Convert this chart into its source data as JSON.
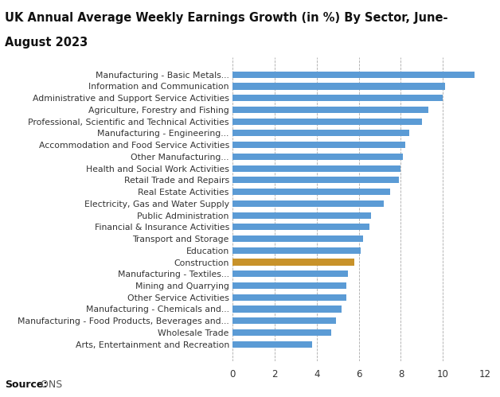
{
  "title_line1": "UK Annual Average Weekly Earnings Growth (in %) By Sector, June-",
  "title_line2": "August 2023",
  "categories": [
    "Manufacturing - Basic Metals...",
    "Information and Communication",
    "Administrative and Support Service Activities",
    "Agriculture, Forestry and Fishing",
    "Professional, Scientific and Technical Activities",
    "Manufacturing - Engineering...",
    "Accommodation and Food Service Activities",
    "Other Manufacturing...",
    "Health and Social Work Activities",
    "Retail Trade and Repairs",
    "Real Estate Activities",
    "Electricity, Gas and Water Supply",
    "Public Administration",
    "Financial & Insurance Activities",
    "Transport and Storage",
    "Education",
    "Construction",
    "Manufacturing - Textiles...",
    "Mining and Quarrying",
    "Other Service Activities",
    "Manufacturing - Chemicals and...",
    "Manufacturing - Food Products, Beverages and...",
    "Wholesale Trade",
    "Arts, Entertainment and Recreation"
  ],
  "values": [
    11.5,
    10.1,
    10.0,
    9.3,
    9.0,
    8.4,
    8.2,
    8.1,
    8.0,
    7.9,
    7.5,
    7.2,
    6.6,
    6.5,
    6.2,
    6.1,
    5.8,
    5.5,
    5.4,
    5.4,
    5.2,
    4.9,
    4.7,
    3.8
  ],
  "bar_colors": [
    "#5b9bd5",
    "#5b9bd5",
    "#5b9bd5",
    "#5b9bd5",
    "#5b9bd5",
    "#5b9bd5",
    "#5b9bd5",
    "#5b9bd5",
    "#5b9bd5",
    "#5b9bd5",
    "#5b9bd5",
    "#5b9bd5",
    "#5b9bd5",
    "#5b9bd5",
    "#5b9bd5",
    "#5b9bd5",
    "#c8922a",
    "#5b9bd5",
    "#5b9bd5",
    "#5b9bd5",
    "#5b9bd5",
    "#5b9bd5",
    "#5b9bd5",
    "#5b9bd5"
  ],
  "xlim": [
    0,
    12
  ],
  "xticks": [
    0,
    2,
    4,
    6,
    8,
    10,
    12
  ],
  "background_color": "#ffffff",
  "title_fontsize": 10.5,
  "label_fontsize": 7.8,
  "tick_fontsize": 8.5,
  "source_bold": "Source:",
  "source_normal": " ONS",
  "source_fontsize": 9
}
